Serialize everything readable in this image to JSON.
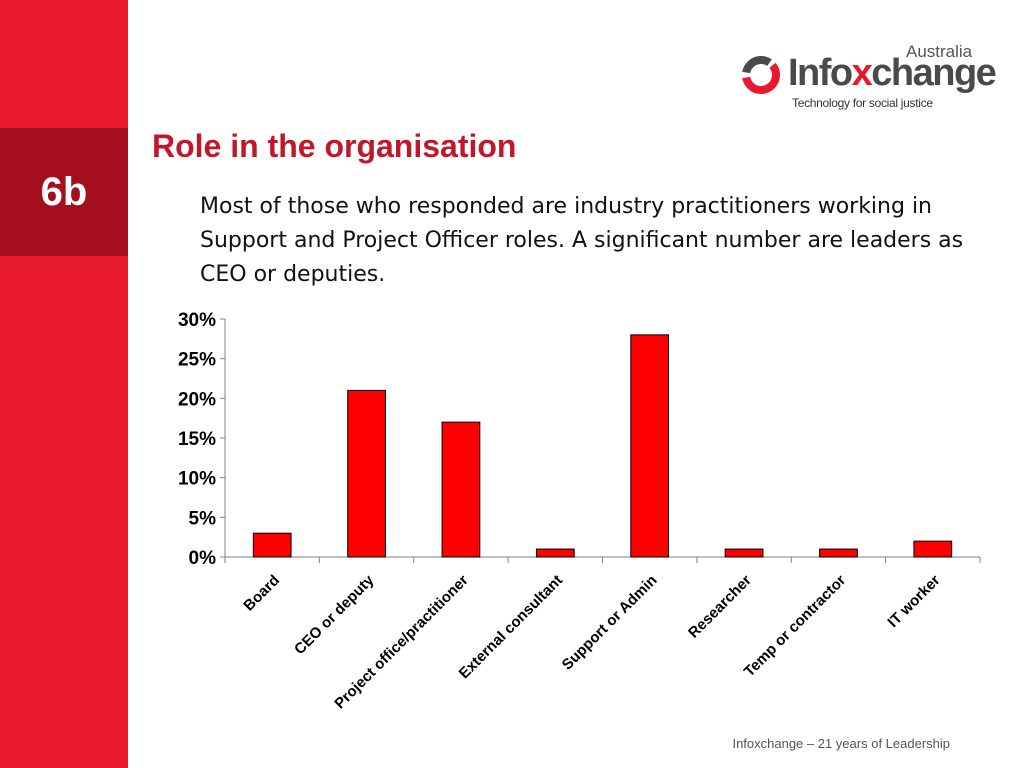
{
  "slide": {
    "section_number": "6b",
    "title": "Role in the organisation",
    "subtitle": "Most of those who responded are industry practitioners working in Support and Project  Officer roles.  A significant number are leaders as CEO or deputies.",
    "footer": "Infoxchange – 21 years of Leadership"
  },
  "logo": {
    "country": "Australia",
    "name_part1": "Info",
    "name_part2": "x",
    "name_part3": "change",
    "tagline": "Technology for social justice"
  },
  "colors": {
    "sidebar": "#e8192c",
    "badge": "#a50f1d",
    "bar": "#ff0000",
    "title": "#c0182a"
  },
  "chart_data": {
    "type": "bar",
    "categories": [
      "Board",
      "CEO or deputy",
      "Project office/practitioner",
      "External consultant",
      "Support or Admin",
      "Researcher",
      "Temp or contractor",
      "IT worker"
    ],
    "values": [
      3,
      21,
      17,
      1,
      28,
      1,
      1,
      2
    ],
    "ylim": [
      0,
      30
    ],
    "yticks": [
      "0%",
      "5%",
      "10%",
      "15%",
      "20%",
      "25%",
      "30%"
    ],
    "ytick_values": [
      0,
      5,
      10,
      15,
      20,
      25,
      30
    ],
    "grid": false,
    "legend": "none"
  }
}
